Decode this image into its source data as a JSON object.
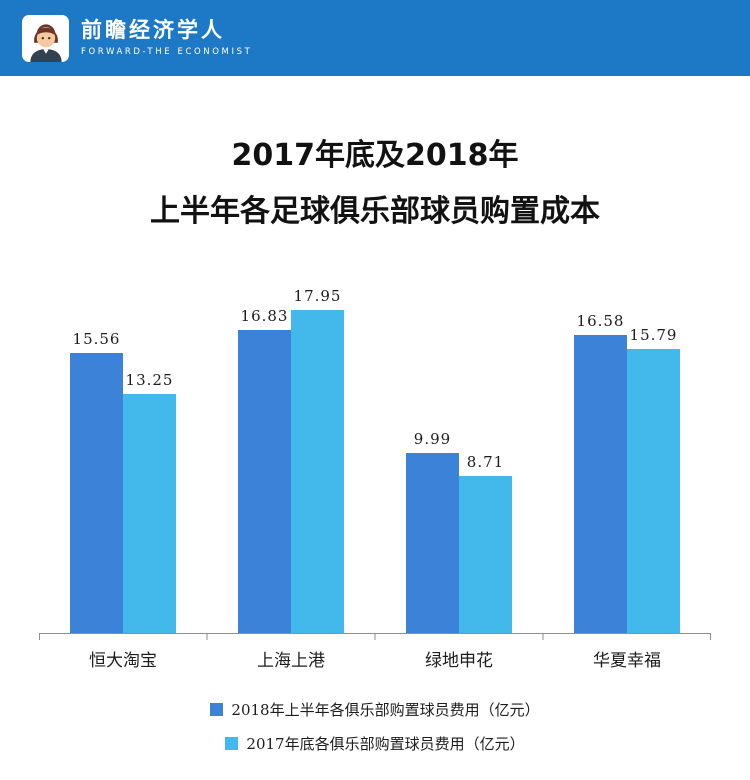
{
  "header": {
    "brand_cn": "前瞻经济学人",
    "brand_en": "FORWARD-THE ECONOMIST",
    "bg_color": "#1d79c5"
  },
  "title": {
    "line1": "2017年底及2018年",
    "line2": "上半年各足球俱乐部球员购置成本"
  },
  "chart_data": {
    "type": "bar",
    "categories": [
      "恒大淘宝",
      "上海上港",
      "绿地申花",
      "华夏幸福"
    ],
    "series": [
      {
        "name": "2018年上半年各俱乐部购置球员费用（亿元）",
        "color": "#3b82d8",
        "values": [
          15.56,
          16.83,
          9.99,
          16.58
        ]
      },
      {
        "name": "2017年底各俱乐部购置球员费用（亿元）",
        "color": "#42b9ea",
        "values": [
          13.25,
          17.95,
          8.71,
          15.79
        ]
      }
    ],
    "ylim": [
      0,
      20
    ],
    "grid": false,
    "legend_position": "bottom",
    "value_labels": true,
    "axis_color": "#8f8f8f"
  }
}
